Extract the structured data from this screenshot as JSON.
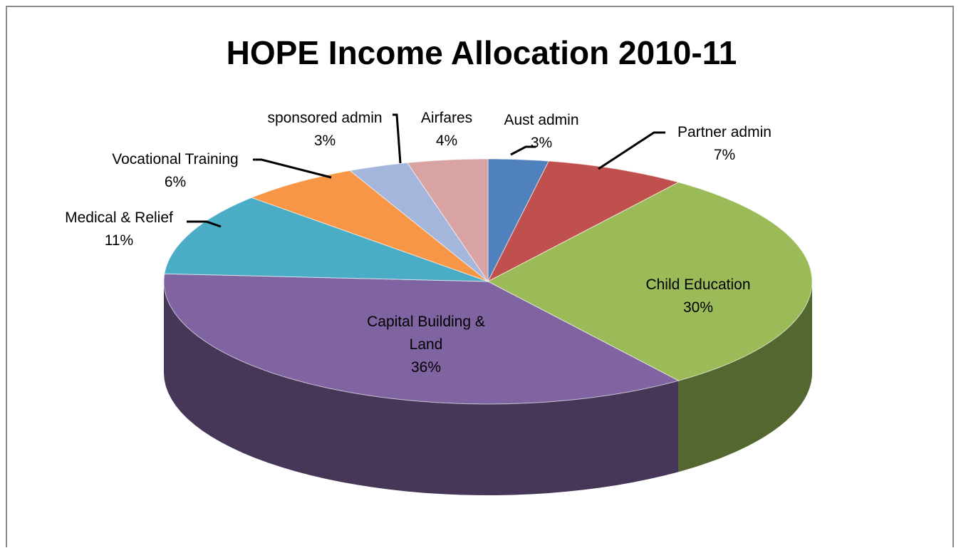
{
  "chart_data": {
    "type": "pie",
    "title": "HOPE Income Allocation 2010-11",
    "slices": [
      {
        "label": "Aust admin",
        "value": 3,
        "value_label": "3%",
        "color": "#4f81bd"
      },
      {
        "label": "Partner admin",
        "value": 7,
        "value_label": "7%",
        "color": "#c0504d"
      },
      {
        "label": "Child Education",
        "value": 30,
        "value_label": "30%",
        "color": "#9bbb59"
      },
      {
        "label": "Capital Building & Land",
        "value": 36,
        "value_label": "36%",
        "color": "#8064a2"
      },
      {
        "label": "Medical & Relief",
        "value": 11,
        "value_label": "11%",
        "color": "#4bacc6"
      },
      {
        "label": "Vocational Training",
        "value": 6,
        "value_label": "6%",
        "color": "#f79646"
      },
      {
        "label": "sponsored admin",
        "value": 3,
        "value_label": "3%",
        "color": "#a5b6dd"
      },
      {
        "label": "Airfares",
        "value": 4,
        "value_label": "4%",
        "color": "#d9a3a3"
      }
    ],
    "style": "3d-pie",
    "legend": "none",
    "data_labels": "category and percentage"
  }
}
